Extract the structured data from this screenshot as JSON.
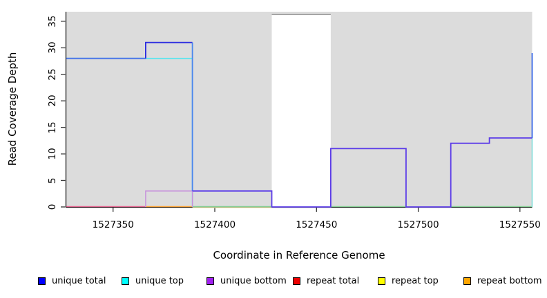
{
  "chart_data": {
    "type": "line",
    "subtype": "step-coverage",
    "title": "",
    "xlabel": "Coordinate in Reference Genome",
    "ylabel": "Read Coverage Depth",
    "xlim": [
      1527327,
      1527556
    ],
    "ylim": [
      0,
      36.8
    ],
    "x_ticks": [
      1527350,
      1527400,
      1527450,
      1527500,
      1527550
    ],
    "y_ticks": [
      0,
      5,
      10,
      15,
      20,
      25,
      30,
      35
    ],
    "grid": false,
    "legend_position": "bottom",
    "plot_bg": "#dcdcdc",
    "mask_region": {
      "x_start": 1527428,
      "x_end": 1527457,
      "fill": "#ffffff",
      "top_border": "#8f8f8f",
      "top_value": 36.3
    },
    "series": [
      {
        "name": "unique total",
        "color": "#0000ff",
        "steps": [
          [
            1527327,
            28
          ],
          [
            1527366,
            31
          ],
          [
            1527389,
            3
          ],
          [
            1527428,
            0
          ],
          [
            1527457,
            11
          ],
          [
            1527494,
            0
          ],
          [
            1527516,
            12
          ],
          [
            1527535,
            13
          ],
          [
            1527556,
            29
          ]
        ]
      },
      {
        "name": "unique top",
        "color": "#00ffff",
        "steps": [
          [
            1527327,
            28
          ],
          [
            1527389,
            0
          ],
          [
            1527556,
            13
          ]
        ]
      },
      {
        "name": "unique bottom",
        "color": "#a020f0",
        "steps": [
          [
            1527327,
            0
          ],
          [
            1527366,
            3
          ],
          [
            1527389,
            3
          ],
          [
            1527428,
            0
          ],
          [
            1527457,
            11
          ],
          [
            1527494,
            0
          ],
          [
            1527516,
            12
          ],
          [
            1527535,
            13
          ]
        ]
      },
      {
        "name": "repeat total",
        "color": "#ee0000",
        "steps": [
          [
            1527327,
            0
          ],
          [
            1527556,
            0
          ]
        ]
      },
      {
        "name": "repeat top",
        "color": "#ffff00",
        "steps": [
          [
            1527327,
            0
          ],
          [
            1527556,
            0
          ]
        ]
      },
      {
        "name": "repeat bottom",
        "color": "#ffa500",
        "steps": [
          [
            1527327,
            0
          ],
          [
            1527556,
            0
          ]
        ]
      }
    ],
    "render_lines": [
      {
        "name": "repeat-total-zero",
        "color": "#e0608c",
        "width": 1.4,
        "dy": -0.5,
        "points": [
          [
            1527327,
            0
          ],
          [
            1527366,
            0
          ]
        ]
      },
      {
        "name": "repeat-bottom-zero",
        "color": "#ffa033",
        "width": 1.4,
        "dy": -0.5,
        "points": [
          [
            1527366,
            0
          ],
          [
            1527389,
            0
          ]
        ]
      },
      {
        "name": "repeat-top-zero",
        "color": "#efeba8",
        "width": 1.3,
        "dy": 1.0,
        "points": [
          [
            1527389,
            0
          ],
          [
            1527428,
            0
          ]
        ]
      },
      {
        "name": "zero-blend-green-1",
        "color": "#84cd92",
        "width": 1.4,
        "dy": -0.5,
        "points": [
          [
            1527389,
            0
          ],
          [
            1527428,
            0
          ]
        ]
      },
      {
        "name": "zero-blend-green-2",
        "color": "#84cd92",
        "width": 1.4,
        "dy": -0.5,
        "points": [
          [
            1527457,
            0
          ],
          [
            1527494,
            0
          ]
        ]
      },
      {
        "name": "zero-blend-green-3",
        "color": "#84cd92",
        "width": 1.4,
        "dy": -0.5,
        "points": [
          [
            1527516,
            0
          ],
          [
            1527556,
            0
          ]
        ]
      },
      {
        "name": "unique-top-line",
        "color": "#58e4ee",
        "width": 1.6,
        "dy": 0,
        "points": [
          [
            1527327,
            28
          ],
          [
            1527389,
            28
          ],
          [
            1527389,
            0
          ]
        ]
      },
      {
        "name": "unique-top-end",
        "color": "#8fe0dc",
        "width": 1.8,
        "dy": 0,
        "points": [
          [
            1527556,
            0
          ],
          [
            1527556,
            13
          ]
        ]
      },
      {
        "name": "unique-bottom-step",
        "color": "#c792dc",
        "width": 1.5,
        "dy": 0,
        "points": [
          [
            1527366,
            0
          ],
          [
            1527366,
            3
          ],
          [
            1527389,
            3
          ],
          [
            1527389,
            0
          ]
        ]
      },
      {
        "name": "unique-total-28",
        "color": "#4673e8",
        "width": 1.8,
        "dy": 0,
        "points": [
          [
            1527327,
            28
          ],
          [
            1527366,
            28
          ]
        ]
      },
      {
        "name": "unique-total-31",
        "color": "#2d2de0",
        "width": 1.8,
        "dy": 0,
        "points": [
          [
            1527366,
            28
          ],
          [
            1527366,
            31
          ],
          [
            1527389,
            31
          ]
        ]
      },
      {
        "name": "unique-total-drop",
        "color": "#4a86ee",
        "width": 1.8,
        "dy": 0,
        "points": [
          [
            1527389,
            31
          ],
          [
            1527389,
            3
          ]
        ]
      },
      {
        "name": "unique-overlap-path",
        "color": "#5b3be8",
        "width": 1.8,
        "dy": 0,
        "points": [
          [
            1527389,
            3
          ],
          [
            1527428,
            3
          ],
          [
            1527428,
            0
          ],
          [
            1527457,
            0
          ],
          [
            1527457,
            11
          ],
          [
            1527494,
            11
          ],
          [
            1527494,
            0
          ],
          [
            1527516,
            0
          ],
          [
            1527516,
            12
          ],
          [
            1527535,
            12
          ],
          [
            1527535,
            13
          ],
          [
            1527556,
            13
          ]
        ]
      },
      {
        "name": "unique-total-end",
        "color": "#3a6ae8",
        "width": 1.8,
        "dy": 0,
        "points": [
          [
            1527556,
            13
          ],
          [
            1527556,
            29
          ]
        ]
      }
    ],
    "legend": [
      {
        "label": "unique total",
        "color": "#0000ff"
      },
      {
        "label": "unique top",
        "color": "#00ffff"
      },
      {
        "label": "unique bottom",
        "color": "#a020f0"
      },
      {
        "label": "repeat total",
        "color": "#ee0000"
      },
      {
        "label": "repeat top",
        "color": "#ffff00"
      },
      {
        "label": "repeat bottom",
        "color": "#ffa500"
      }
    ]
  }
}
